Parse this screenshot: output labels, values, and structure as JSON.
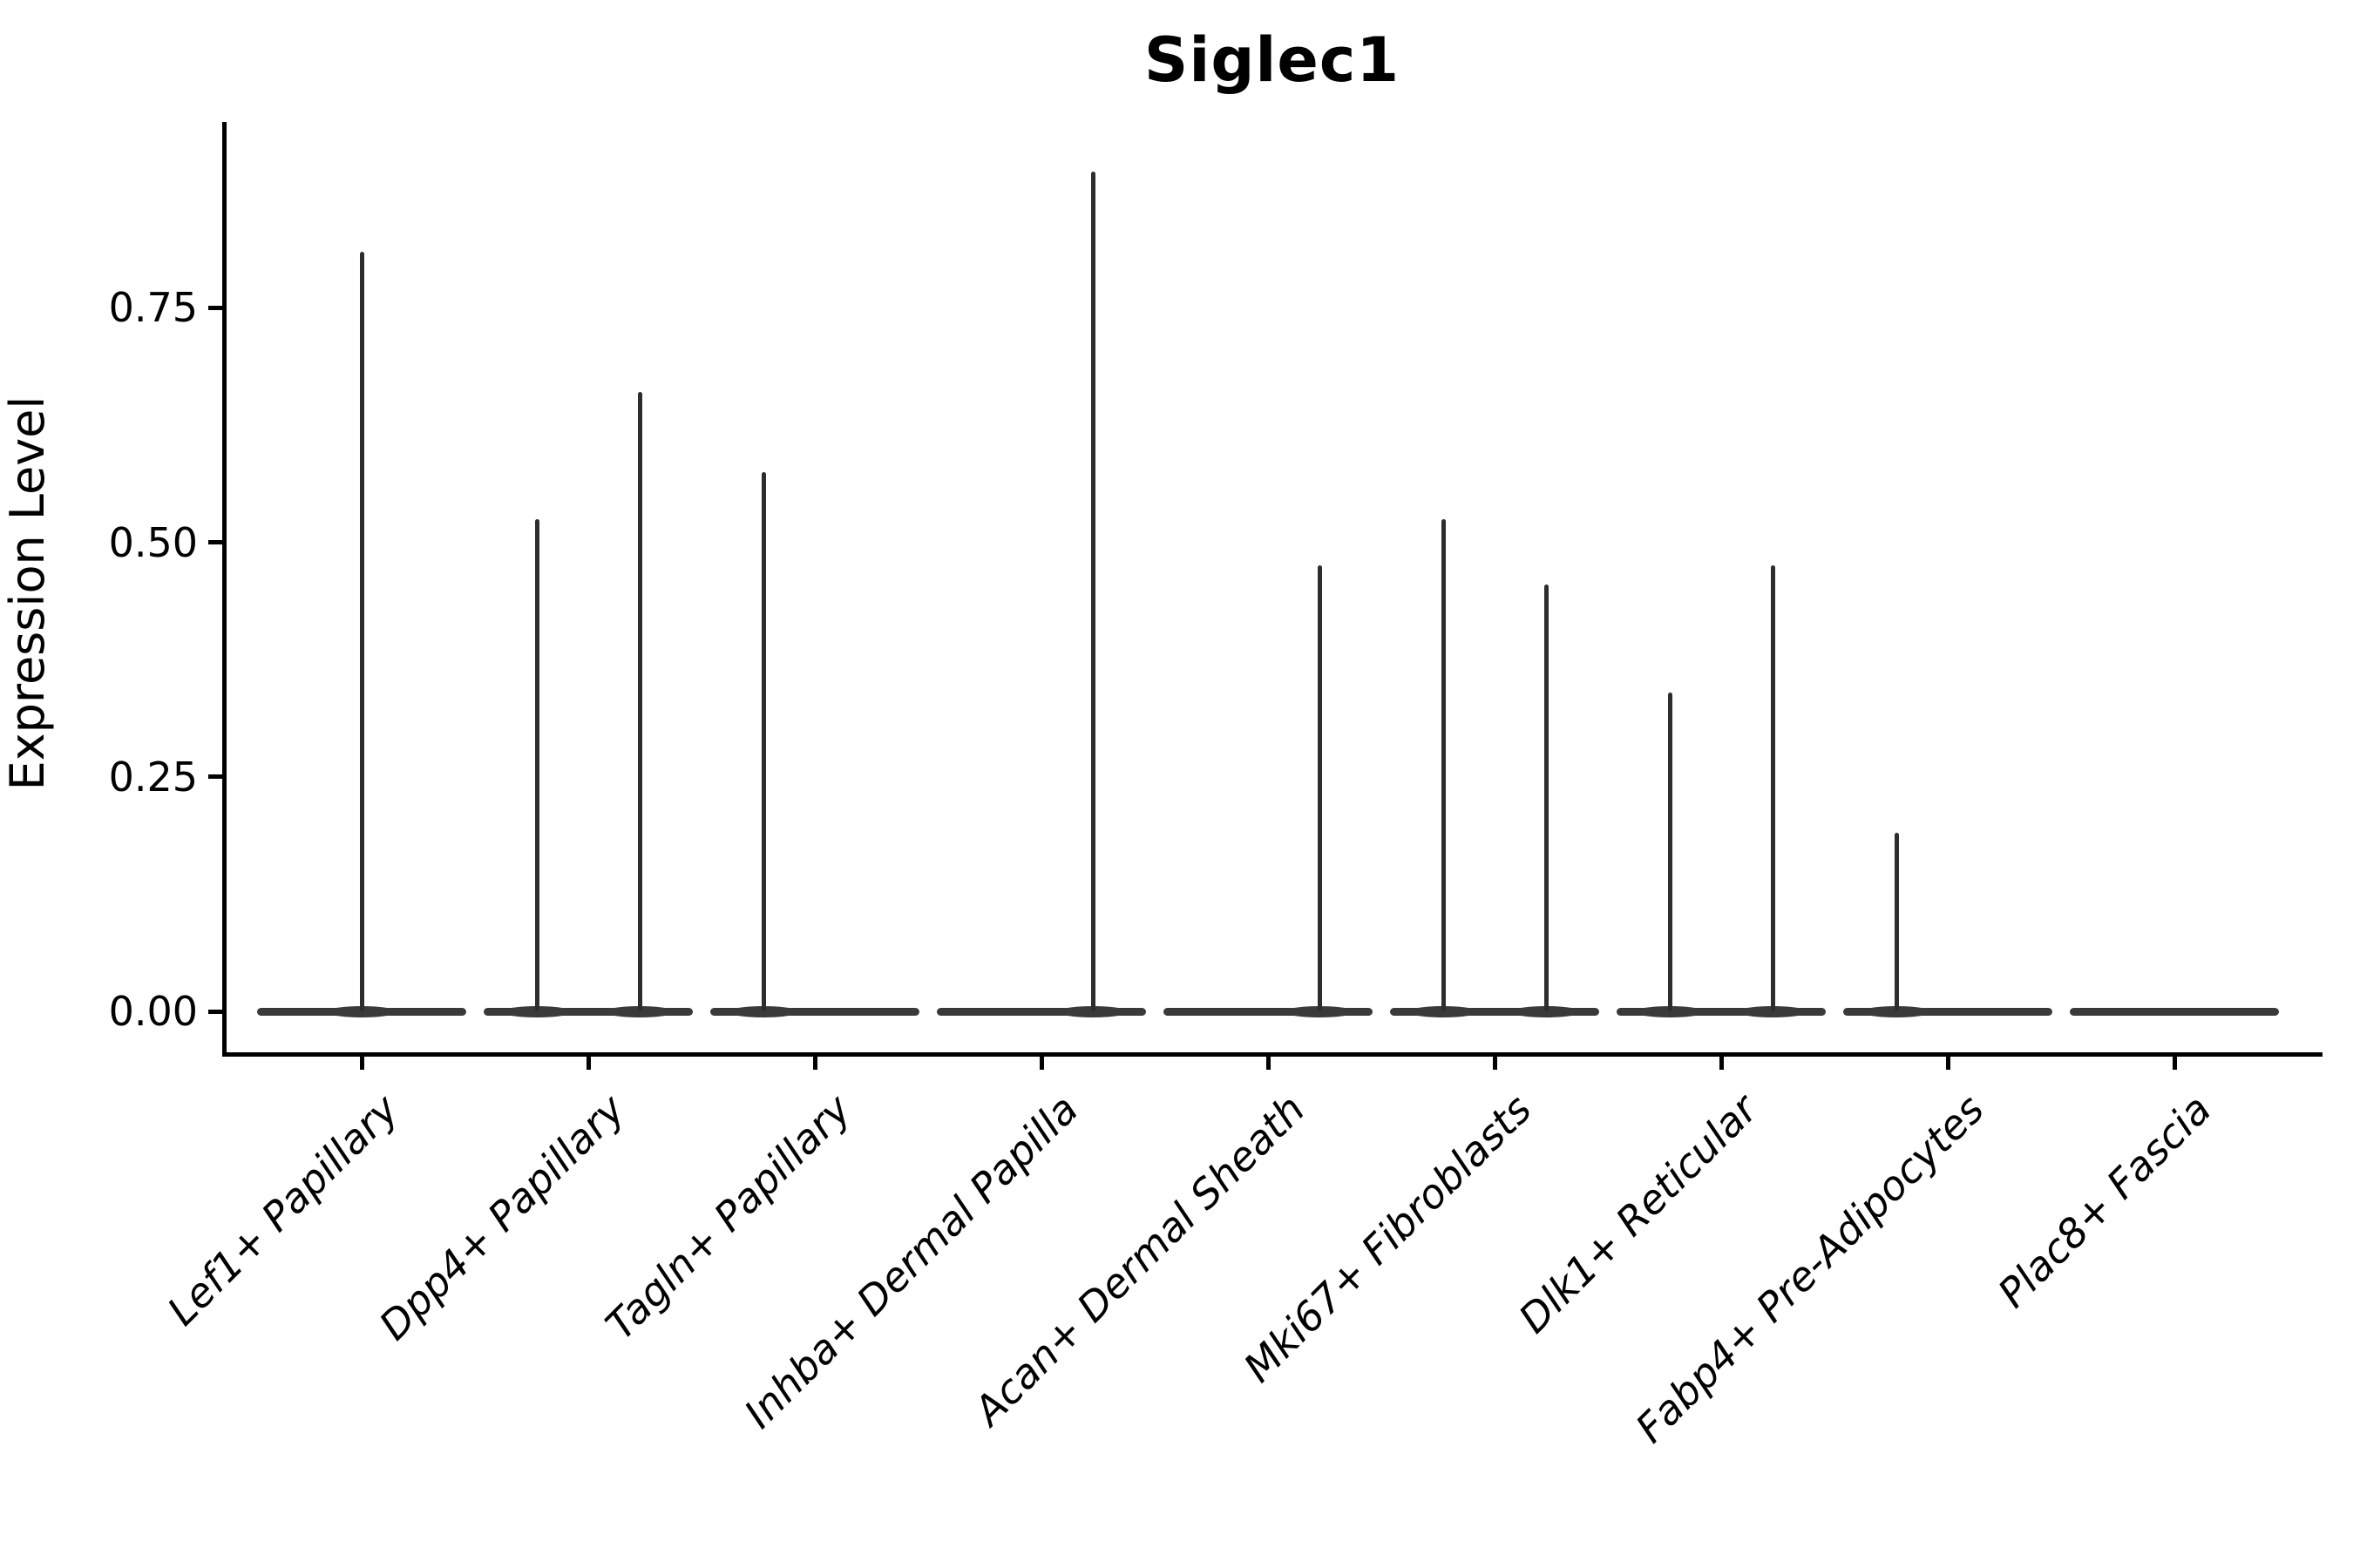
{
  "figure": {
    "background": "#ffffff"
  },
  "chart_data": {
    "type": "violin",
    "title": "Siglec1",
    "ylabel": "Expression Level",
    "xlabel": "",
    "grid": false,
    "legend_position": "none",
    "ylim": [
      -0.045,
      0.945
    ],
    "yticks": [
      {
        "label": "0.00",
        "value": 0.0
      },
      {
        "label": "0.25",
        "value": 0.25
      },
      {
        "label": "0.50",
        "value": 0.5
      },
      {
        "label": "0.75",
        "value": 0.75
      }
    ],
    "axis_color": "#000000",
    "violin_color": "#3a3a3a",
    "spike_color": "#2d2d2d",
    "description": "Flat violins at expression 0 with thin spikes rising to the maximum expression value; several categories contain two side-by-side sub-violins (left/right groups).",
    "categories": [
      {
        "label": "Lef1+ Papillary",
        "spikes": [
          {
            "side": "center",
            "max": 0.81
          }
        ]
      },
      {
        "label": "Dpp4+ Papillary",
        "spikes": [
          {
            "side": "left",
            "max": 0.525
          },
          {
            "side": "right",
            "max": 0.66
          }
        ]
      },
      {
        "label": "Tagln+ Papillary",
        "spikes": [
          {
            "side": "left",
            "max": 0.575
          }
        ]
      },
      {
        "label": "Inhba+ Dermal Papilla",
        "spikes": [
          {
            "side": "right",
            "max": 0.895
          }
        ]
      },
      {
        "label": "Acan+ Dermal Sheath",
        "spikes": [
          {
            "side": "right",
            "max": 0.475
          }
        ]
      },
      {
        "label": "Mki67+ Fibroblasts",
        "spikes": [
          {
            "side": "left",
            "max": 0.525
          },
          {
            "side": "right",
            "max": 0.455
          }
        ]
      },
      {
        "label": "Dlk1+ Reticular",
        "spikes": [
          {
            "side": "left",
            "max": 0.34
          },
          {
            "side": "right",
            "max": 0.475
          }
        ]
      },
      {
        "label": "Fabp4+ Pre-Adipocytes",
        "spikes": [
          {
            "side": "left",
            "max": 0.19
          }
        ]
      },
      {
        "label": "Plac8+ Fascia",
        "spikes": []
      }
    ]
  }
}
